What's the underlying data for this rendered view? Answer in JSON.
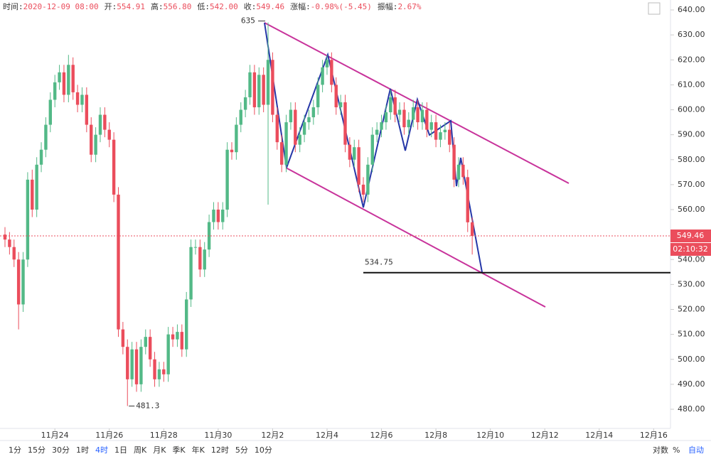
{
  "chart_data": {
    "type": "candlestick",
    "header": [
      {
        "label": "时间:",
        "value": "2020-12-09 08:00"
      },
      {
        "label": "开:",
        "value": "554.91"
      },
      {
        "label": "高:",
        "value": "556.80"
      },
      {
        "label": "低:",
        "value": "542.00"
      },
      {
        "label": "收:",
        "value": "549.46"
      },
      {
        "label": "涨幅:",
        "value": "-0.98%(-5.45)"
      },
      {
        "label": "振幅:",
        "value": "2.67%"
      }
    ],
    "categories": [
      null,
      null,
      null,
      null,
      null,
      null,
      null,
      null,
      null,
      null,
      null,
      "11月24",
      null,
      null,
      null,
      null,
      null,
      null,
      null,
      null,
      null,
      null,
      null,
      "11月26",
      null,
      null,
      null,
      null,
      null,
      null,
      null,
      null,
      null,
      null,
      null,
      "11月28",
      null,
      null,
      null,
      null,
      null,
      null,
      null,
      null,
      null,
      null,
      null,
      "11月30",
      null,
      null,
      null,
      null,
      null,
      null,
      null,
      null,
      null,
      null,
      null,
      "12月2",
      null,
      null,
      null,
      null,
      null,
      null,
      null,
      null,
      null,
      null,
      null,
      "12月4",
      null,
      null,
      null,
      null,
      null,
      null,
      null,
      null,
      null,
      null,
      null,
      "12月6",
      null,
      null,
      null,
      null,
      null,
      null,
      null,
      null,
      null,
      null,
      null,
      "12月8",
      null,
      null,
      null,
      null,
      null,
      null,
      null,
      null,
      null,
      null,
      null,
      "12月10",
      null,
      null,
      null,
      null,
      null,
      null,
      null,
      null,
      null,
      null,
      null,
      "12月12",
      null,
      null,
      null,
      null,
      null,
      null,
      null,
      null,
      null,
      null,
      null,
      "12月14",
      null,
      null,
      null,
      null,
      null,
      null,
      null,
      null,
      null,
      null,
      null,
      "12月16",
      null,
      null,
      null
    ],
    "open": [
      550,
      548,
      545,
      540,
      522,
      540,
      572,
      560,
      578,
      584,
      594,
      604,
      611,
      615,
      606,
      618,
      607,
      602,
      606,
      594,
      582,
      590,
      598,
      592,
      588,
      566,
      512,
      505,
      492,
      504,
      490,
      505,
      509,
      500,
      492,
      496,
      494,
      510,
      508,
      511,
      504,
      524,
      545,
      545,
      536,
      544,
      555,
      560,
      555,
      560,
      584,
      583,
      594,
      600,
      605,
      615,
      601,
      614,
      602,
      620,
      598,
      587,
      578,
      595,
      600,
      586,
      590,
      595,
      597,
      601,
      610,
      617,
      620,
      610,
      601,
      603,
      586,
      580,
      585,
      570,
      566,
      578,
      590,
      592,
      595,
      599,
      605,
      598,
      600,
      593,
      596,
      601,
      595,
      600,
      592,
      595,
      588,
      591,
      592,
      586,
      572,
      578,
      573,
      554.91,
      null,
      null,
      null,
      null,
      null,
      null,
      null,
      null,
      null,
      null,
      null,
      null,
      null,
      null,
      null,
      null,
      null,
      null,
      null,
      null,
      null,
      null,
      null,
      null,
      null,
      null,
      null,
      null,
      null,
      null,
      null,
      null,
      null,
      null,
      null,
      null,
      null,
      null,
      null,
      null,
      null,
      null,
      null
    ],
    "high": [
      553,
      551,
      548,
      543,
      543,
      575,
      576,
      581,
      587,
      597,
      607,
      614,
      618,
      618,
      622,
      621,
      610,
      609,
      609,
      597,
      593,
      601,
      601,
      595,
      591,
      569,
      515,
      508,
      507,
      507,
      508,
      512,
      512,
      503,
      499,
      499,
      513,
      513,
      514,
      514,
      527,
      548,
      548,
      548,
      547,
      558,
      563,
      563,
      563,
      587,
      587,
      597,
      603,
      608,
      618,
      618,
      617,
      617,
      635,
      623,
      601,
      590,
      598,
      603,
      603,
      593,
      598,
      600,
      604,
      613,
      620,
      622,
      623,
      613,
      606,
      606,
      589,
      588,
      588,
      573,
      581,
      593,
      595,
      598,
      602,
      608,
      608,
      603,
      603,
      599,
      604,
      604,
      603,
      603,
      598,
      598,
      594,
      595,
      595,
      589,
      581,
      581,
      576,
      556.8,
      null,
      null,
      null,
      null,
      null,
      null,
      null,
      null,
      null,
      null,
      null,
      null,
      null,
      null,
      null,
      null,
      null,
      null,
      null,
      null,
      null,
      null,
      null,
      null,
      null,
      null,
      null,
      null,
      null,
      null,
      null,
      null,
      null,
      null,
      null,
      null,
      null,
      null,
      null,
      null,
      null,
      null,
      null
    ],
    "low": [
      545,
      542,
      537,
      512,
      519,
      537,
      557,
      557,
      575,
      581,
      591,
      601,
      608,
      603,
      603,
      604,
      599,
      599,
      591,
      579,
      579,
      587,
      589,
      585,
      563,
      509,
      502,
      481.3,
      489,
      487,
      487,
      502,
      497,
      489,
      489,
      491,
      491,
      505,
      505,
      501,
      501,
      521,
      542,
      533,
      533,
      541,
      552,
      552,
      552,
      557,
      580,
      580,
      591,
      597,
      602,
      598,
      598,
      599,
      562,
      595,
      584,
      575,
      575,
      592,
      583,
      583,
      587,
      592,
      594,
      598,
      607,
      614,
      607,
      598,
      598,
      583,
      577,
      577,
      567,
      563,
      563,
      575,
      587,
      589,
      592,
      596,
      595,
      595,
      590,
      590,
      593,
      592,
      592,
      589,
      589,
      585,
      585,
      588,
      583,
      569,
      569,
      570,
      551,
      542.0,
      null,
      null,
      null,
      null,
      null,
      null,
      null,
      null,
      null,
      null,
      null,
      null,
      null,
      null,
      null,
      null,
      null,
      null,
      null,
      null,
      null,
      null,
      null,
      null,
      null,
      null,
      null,
      null,
      null,
      null,
      null,
      null,
      null,
      null,
      null,
      null,
      null,
      null,
      null,
      null,
      null,
      null,
      null
    ],
    "close": [
      548,
      545,
      540,
      522,
      540,
      572,
      560,
      578,
      584,
      594,
      604,
      611,
      615,
      606,
      618,
      607,
      602,
      606,
      594,
      582,
      590,
      598,
      592,
      588,
      566,
      512,
      505,
      492,
      504,
      490,
      505,
      509,
      500,
      492,
      496,
      494,
      510,
      508,
      511,
      504,
      524,
      545,
      545,
      536,
      544,
      555,
      560,
      555,
      560,
      584,
      583,
      594,
      600,
      605,
      615,
      601,
      614,
      602,
      620,
      598,
      587,
      578,
      595,
      600,
      586,
      590,
      595,
      597,
      601,
      610,
      617,
      620,
      610,
      601,
      603,
      586,
      580,
      585,
      570,
      566,
      578,
      590,
      592,
      595,
      599,
      605,
      598,
      600,
      593,
      596,
      601,
      595,
      600,
      592,
      595,
      588,
      591,
      592,
      586,
      572,
      578,
      573,
      554.91,
      549.46,
      null,
      null,
      null,
      null,
      null,
      null,
      null,
      null,
      null,
      null,
      null,
      null,
      null,
      null,
      null,
      null,
      null,
      null,
      null,
      null,
      null,
      null,
      null,
      null,
      null,
      null,
      null,
      null,
      null,
      null,
      null,
      null,
      null,
      null,
      null,
      null,
      null,
      null,
      null,
      null,
      null,
      null,
      null
    ],
    "up_color": "#53b987",
    "down_color": "#eb4d5c",
    "ylim": [
      480,
      640
    ],
    "yticks": [
      {
        "value": 480,
        "label": "480.00"
      },
      {
        "value": 490,
        "label": "490.00"
      },
      {
        "value": 500,
        "label": "500.00"
      },
      {
        "value": 510,
        "label": "510.00"
      },
      {
        "value": 520,
        "label": "520.00"
      },
      {
        "value": 530,
        "label": "530.00"
      },
      {
        "value": 540,
        "label": "540.00"
      },
      {
        "value": 550,
        "label": "550.00"
      },
      {
        "value": 560,
        "label": "560.00"
      },
      {
        "value": 570,
        "label": "570.00"
      },
      {
        "value": 580,
        "label": "580.00"
      },
      {
        "value": 590,
        "label": "590.00"
      },
      {
        "value": 600,
        "label": "600.00"
      },
      {
        "value": 610,
        "label": "610.00"
      },
      {
        "value": 620,
        "label": "620.00"
      },
      {
        "value": 630,
        "label": "630.00"
      },
      {
        "value": 640,
        "label": "640.00"
      }
    ],
    "support_level": 534.75,
    "countdown": "02:10:32",
    "toolbar": {
      "intervals": [
        "1分",
        "15分",
        "30分",
        "1时",
        "4时",
        "1日",
        "周K",
        "月K",
        "季K",
        "年K",
        "12时",
        "5分",
        "10分"
      ],
      "active_interval": "4时",
      "options": [
        "对数",
        "%",
        "自动"
      ],
      "active_option": "自动"
    }
  }
}
